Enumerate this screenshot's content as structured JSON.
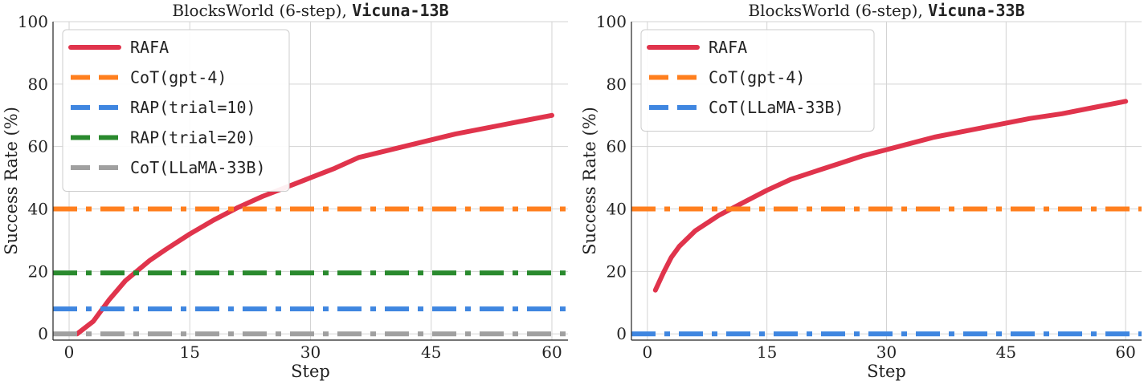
{
  "chart_data": [
    {
      "type": "line",
      "title_prefix": "BlocksWorld (6-step), ",
      "title_model": "Vicuna-13B",
      "xlabel": "Step",
      "ylabel": "Success Rate (%)",
      "xlim": [
        -2,
        62
      ],
      "ylim": [
        -2,
        100
      ],
      "xticks": [
        0,
        15,
        30,
        45,
        60
      ],
      "yticks": [
        0,
        20,
        40,
        60,
        80,
        100
      ],
      "grid": true,
      "legend_position": "top-left",
      "series": [
        {
          "name": "RAFA",
          "style": "solid",
          "color": "#e0344c",
          "x": [
            1,
            3,
            5,
            7,
            10,
            12,
            15,
            18,
            21,
            24,
            27,
            30,
            33,
            36,
            40,
            44,
            48,
            52,
            56,
            60
          ],
          "y": [
            0,
            4,
            11,
            17,
            23.5,
            27,
            32,
            36.5,
            40.5,
            44,
            47,
            50,
            53,
            56.5,
            59,
            61.5,
            64,
            66,
            68,
            70
          ]
        },
        {
          "name": "CoT(gpt-4)",
          "style": "dashdot",
          "color": "#ff7f1e",
          "y_const": 40
        },
        {
          "name": "RAP(trial=10)",
          "style": "dashdot",
          "color": "#3f86e0",
          "y_const": 8
        },
        {
          "name": "RAP(trial=20)",
          "style": "dashdot",
          "color": "#2a8a2e",
          "y_const": 19.5
        },
        {
          "name": "CoT(LLaMA-33B)",
          "style": "dashdot",
          "color": "#a0a0a0",
          "y_const": 0
        }
      ]
    },
    {
      "type": "line",
      "title_prefix": "BlocksWorld (6-step), ",
      "title_model": "Vicuna-33B",
      "xlabel": "Step",
      "ylabel": "Success Rate (%)",
      "xlim": [
        -2,
        62
      ],
      "ylim": [
        -2,
        100
      ],
      "xticks": [
        0,
        15,
        30,
        45,
        60
      ],
      "yticks": [
        0,
        20,
        40,
        60,
        80,
        100
      ],
      "grid": true,
      "legend_position": "top-left",
      "series": [
        {
          "name": "RAFA",
          "style": "solid",
          "color": "#e0344c",
          "x": [
            1,
            2,
            3,
            4,
            6,
            9,
            12,
            15,
            18,
            21,
            24,
            27,
            30,
            33,
            36,
            40,
            44,
            48,
            52,
            56,
            60
          ],
          "y": [
            14,
            19.5,
            24.5,
            28,
            33,
            38,
            42,
            46,
            49.5,
            52,
            54.5,
            57,
            59,
            61,
            63,
            65,
            67,
            69,
            70.5,
            72.5,
            74.5
          ]
        },
        {
          "name": "CoT(gpt-4)",
          "style": "dashdot",
          "color": "#ff7f1e",
          "y_const": 40
        },
        {
          "name": "CoT(LLaMA-33B)",
          "style": "dashdot",
          "color": "#3f86e0",
          "y_const": 0
        }
      ]
    }
  ]
}
